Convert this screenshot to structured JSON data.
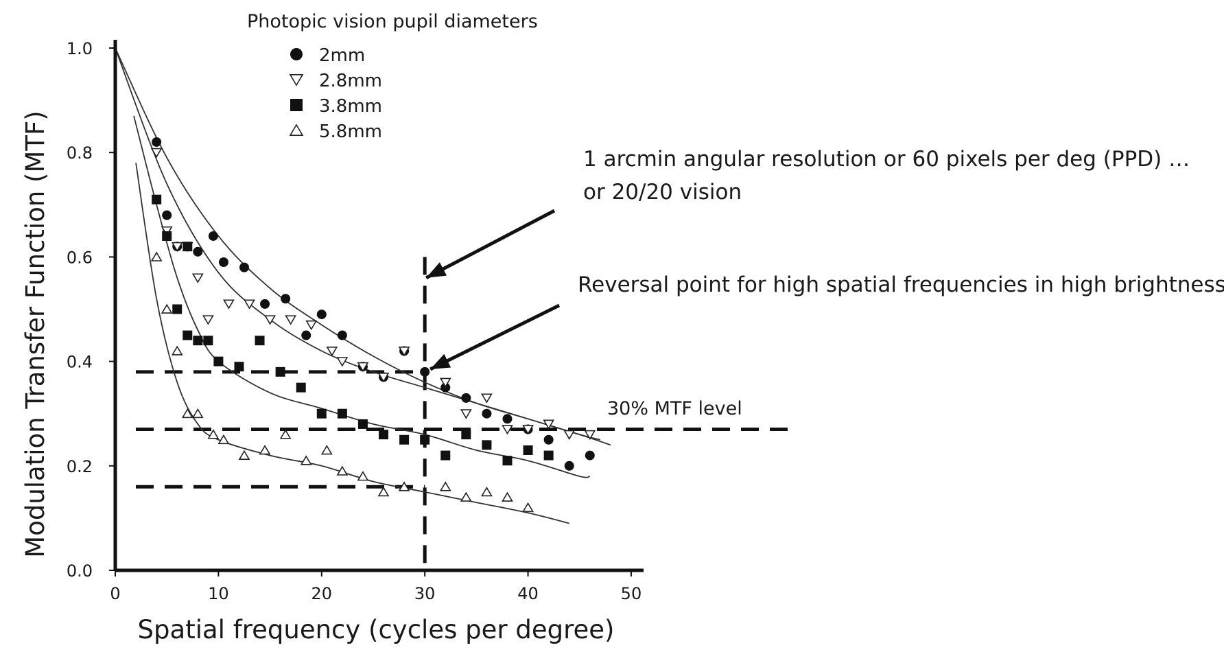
{
  "chart_data": {
    "type": "scatter",
    "legend_title": "Photopic vision pupil diameters",
    "legend_placement": "top-left",
    "xlabel": "Spatial frequency (cycles per degree)",
    "ylabel": "Modulation Transfer Function (MTF)",
    "xlim": [
      0,
      51
    ],
    "ylim": [
      0,
      1.0
    ],
    "x_ticks": [
      0,
      10,
      20,
      30,
      40,
      50
    ],
    "y_ticks": [
      0.0,
      0.2,
      0.4,
      0.6,
      0.8,
      1.0
    ],
    "x_tick_labels": [
      "0",
      "10",
      "20",
      "30",
      "40",
      "50"
    ],
    "y_tick_labels": [
      "0.0",
      "0.2",
      "0.4",
      "0.6",
      "0.8",
      "1.0"
    ],
    "grid": false,
    "series": [
      {
        "name": "2mm",
        "marker": "circle-filled",
        "points": [
          [
            4,
            0.82
          ],
          [
            5,
            0.68
          ],
          [
            6,
            0.62
          ],
          [
            8,
            0.61
          ],
          [
            9.5,
            0.64
          ],
          [
            10.5,
            0.59
          ],
          [
            12.5,
            0.58
          ],
          [
            14.5,
            0.51
          ],
          [
            16.5,
            0.52
          ],
          [
            18.5,
            0.45
          ],
          [
            20,
            0.49
          ],
          [
            22,
            0.45
          ],
          [
            24,
            0.39
          ],
          [
            26,
            0.37
          ],
          [
            28,
            0.42
          ],
          [
            30,
            0.38
          ],
          [
            32,
            0.35
          ],
          [
            34,
            0.33
          ],
          [
            36,
            0.3
          ],
          [
            38,
            0.29
          ],
          [
            40,
            0.27
          ],
          [
            42,
            0.25
          ],
          [
            44,
            0.2
          ],
          [
            46,
            0.22
          ]
        ],
        "fit": [
          [
            0,
            1.0
          ],
          [
            5,
            0.79
          ],
          [
            10,
            0.64
          ],
          [
            15,
            0.54
          ],
          [
            20,
            0.47
          ],
          [
            25,
            0.41
          ],
          [
            30,
            0.36
          ],
          [
            35,
            0.32
          ],
          [
            40,
            0.29
          ],
          [
            45,
            0.26
          ],
          [
            48,
            0.24
          ]
        ]
      },
      {
        "name": "2.8mm",
        "marker": "triangle-down-open",
        "points": [
          [
            4,
            0.8
          ],
          [
            5,
            0.65
          ],
          [
            6,
            0.62
          ],
          [
            7,
            0.62
          ],
          [
            8,
            0.56
          ],
          [
            9,
            0.48
          ],
          [
            11,
            0.51
          ],
          [
            13,
            0.51
          ],
          [
            15,
            0.48
          ],
          [
            17,
            0.48
          ],
          [
            19,
            0.47
          ],
          [
            21,
            0.42
          ],
          [
            22,
            0.4
          ],
          [
            24,
            0.39
          ],
          [
            26,
            0.37
          ],
          [
            28,
            0.42
          ],
          [
            32,
            0.36
          ],
          [
            34,
            0.3
          ],
          [
            36,
            0.33
          ],
          [
            38,
            0.27
          ],
          [
            40,
            0.27
          ],
          [
            42,
            0.28
          ],
          [
            44,
            0.26
          ],
          [
            46,
            0.26
          ]
        ],
        "fit": [
          [
            0,
            1.0
          ],
          [
            5,
            0.74
          ],
          [
            10,
            0.57
          ],
          [
            15,
            0.48
          ],
          [
            20,
            0.42
          ],
          [
            25,
            0.38
          ],
          [
            30,
            0.35
          ],
          [
            35,
            0.32
          ],
          [
            40,
            0.29
          ],
          [
            45,
            0.26
          ],
          [
            47,
            0.25
          ]
        ]
      },
      {
        "name": "3.8mm",
        "marker": "square-filled",
        "points": [
          [
            4,
            0.71
          ],
          [
            5,
            0.64
          ],
          [
            6,
            0.5
          ],
          [
            7,
            0.62
          ],
          [
            7,
            0.45
          ],
          [
            8,
            0.44
          ],
          [
            9,
            0.44
          ],
          [
            10,
            0.4
          ],
          [
            12,
            0.39
          ],
          [
            14,
            0.44
          ],
          [
            16,
            0.38
          ],
          [
            18,
            0.35
          ],
          [
            20,
            0.3
          ],
          [
            22,
            0.3
          ],
          [
            24,
            0.28
          ],
          [
            26,
            0.26
          ],
          [
            28,
            0.25
          ],
          [
            30,
            0.25
          ],
          [
            32,
            0.22
          ],
          [
            34,
            0.26
          ],
          [
            36,
            0.24
          ],
          [
            38,
            0.21
          ],
          [
            40,
            0.23
          ],
          [
            42,
            0.22
          ]
        ],
        "fit": [
          [
            1.8,
            0.87
          ],
          [
            4,
            0.7
          ],
          [
            6,
            0.56
          ],
          [
            8,
            0.46
          ],
          [
            10,
            0.4
          ],
          [
            15,
            0.34
          ],
          [
            20,
            0.31
          ],
          [
            25,
            0.28
          ],
          [
            30,
            0.26
          ],
          [
            35,
            0.23
          ],
          [
            40,
            0.21
          ],
          [
            45,
            0.18
          ],
          [
            46,
            0.18
          ]
        ]
      },
      {
        "name": "5.8mm",
        "marker": "triangle-up-open",
        "points": [
          [
            4,
            0.6
          ],
          [
            5,
            0.5
          ],
          [
            6,
            0.42
          ],
          [
            7,
            0.3
          ],
          [
            8,
            0.3
          ],
          [
            9.5,
            0.26
          ],
          [
            10.5,
            0.25
          ],
          [
            12.5,
            0.22
          ],
          [
            14.5,
            0.23
          ],
          [
            16.5,
            0.26
          ],
          [
            18.5,
            0.21
          ],
          [
            20.5,
            0.23
          ],
          [
            22,
            0.19
          ],
          [
            24,
            0.18
          ],
          [
            26,
            0.15
          ],
          [
            28,
            0.16
          ],
          [
            32,
            0.16
          ],
          [
            34,
            0.14
          ],
          [
            36,
            0.15
          ],
          [
            38,
            0.14
          ],
          [
            40,
            0.12
          ]
        ],
        "fit": [
          [
            2,
            0.78
          ],
          [
            4,
            0.52
          ],
          [
            6,
            0.36
          ],
          [
            8,
            0.28
          ],
          [
            10,
            0.25
          ],
          [
            15,
            0.22
          ],
          [
            20,
            0.2
          ],
          [
            25,
            0.17
          ],
          [
            30,
            0.15
          ],
          [
            35,
            0.13
          ],
          [
            40,
            0.11
          ],
          [
            44,
            0.09
          ]
        ]
      }
    ],
    "reference_lines": {
      "horizontal": [
        0.38,
        0.27,
        0.16
      ],
      "vertical": 30
    },
    "annotations": {
      "arcmin_line1": "1 arcmin angular resolution or 60 pixels per deg (PPD) …",
      "arcmin_line2": "or 20/20 vision",
      "reversal": "Reversal point for high spatial frequencies in high brightness",
      "mtf_level": "30% MTF level"
    }
  }
}
